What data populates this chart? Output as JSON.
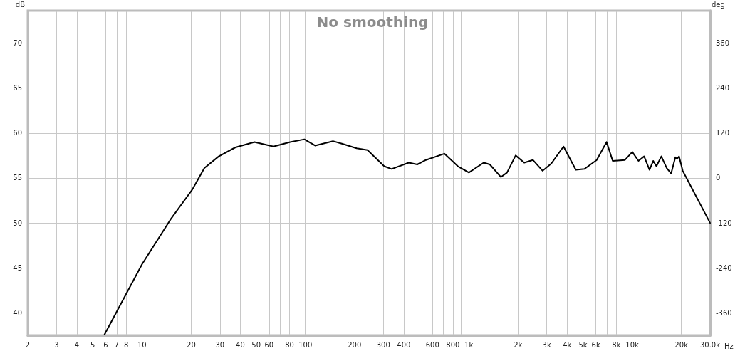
{
  "chart_data": {
    "type": "line",
    "title": "No smoothing",
    "xlabel": "Hz",
    "ylabel": "dB",
    "y2label": "deg",
    "log": "x",
    "grid": true,
    "marker": "none",
    "line_style": "solid",
    "xlim": [
      2,
      30000
    ],
    "xticks": [
      2,
      3,
      4,
      5,
      6,
      7,
      8,
      {
        "value": 9,
        "label": null
      },
      10,
      20,
      30,
      40,
      50,
      60,
      {
        "value": 70,
        "label": null
      },
      80,
      {
        "value": 90,
        "label": null
      },
      100,
      200,
      300,
      400,
      {
        "value": 500,
        "label": null
      },
      600,
      {
        "value": 700,
        "label": null
      },
      800,
      {
        "value": 900,
        "label": null
      },
      {
        "value": 1000,
        "label": "1k"
      },
      {
        "value": 2000,
        "label": "2k"
      },
      {
        "value": 3000,
        "label": "3k"
      },
      {
        "value": 4000,
        "label": "4k"
      },
      {
        "value": 5000,
        "label": "5k"
      },
      {
        "value": 6000,
        "label": "6k"
      },
      {
        "value": 7000,
        "label": null
      },
      {
        "value": 8000,
        "label": "8k"
      },
      {
        "value": 9000,
        "label": null
      },
      {
        "value": 10000,
        "label": "10k"
      },
      {
        "value": 20000,
        "label": "20k"
      },
      {
        "value": 30000,
        "label": "30.0k"
      }
    ],
    "ylim": [
      37.5,
      73.6
    ],
    "yticks": [
      40,
      45,
      50,
      55,
      60,
      65,
      70
    ],
    "y2lim": [
      -420,
      446.4
    ],
    "y2ticks": [
      -360,
      -240,
      -120,
      0,
      120,
      240,
      360
    ],
    "series": [
      {
        "color": "#000000",
        "x": [
          5.9,
          10,
          15.1,
          20.3,
          24.1,
          29.5,
          37.3,
          48.8,
          63.8,
          80.7,
          98.6,
          114.7,
          147.5,
          168.6,
          206,
          240,
          303.8,
          337,
          429.5,
          484,
          547,
          709,
          858,
          1002,
          1234,
          1346,
          1572,
          1715,
          1936,
          2185,
          2468,
          2832,
          3199,
          3802,
          4520,
          5106,
          6069,
          6972,
          7603,
          9037,
          10020,
          10930,
          11840,
          12770,
          13460,
          14080,
          15090,
          16280,
          17320,
          18380,
          18800,
          19370,
          20390,
          30000
        ],
        "values": [
          37.6,
          45.4,
          50.5,
          53.7,
          56.1,
          57.4,
          58.4,
          59.0,
          58.5,
          59.0,
          59.3,
          58.6,
          59.1,
          58.8,
          58.3,
          58.1,
          56.3,
          56.0,
          56.7,
          56.5,
          57.0,
          57.7,
          56.3,
          55.6,
          56.7,
          56.5,
          55.1,
          55.6,
          57.5,
          56.7,
          57.0,
          55.8,
          56.6,
          58.5,
          55.9,
          56.0,
          57.0,
          59.0,
          56.9,
          57.0,
          57.9,
          56.9,
          57.4,
          55.9,
          56.9,
          56.3,
          57.4,
          56.1,
          55.5,
          57.3,
          57.1,
          57.4,
          55.8,
          50.0
        ]
      }
    ]
  }
}
